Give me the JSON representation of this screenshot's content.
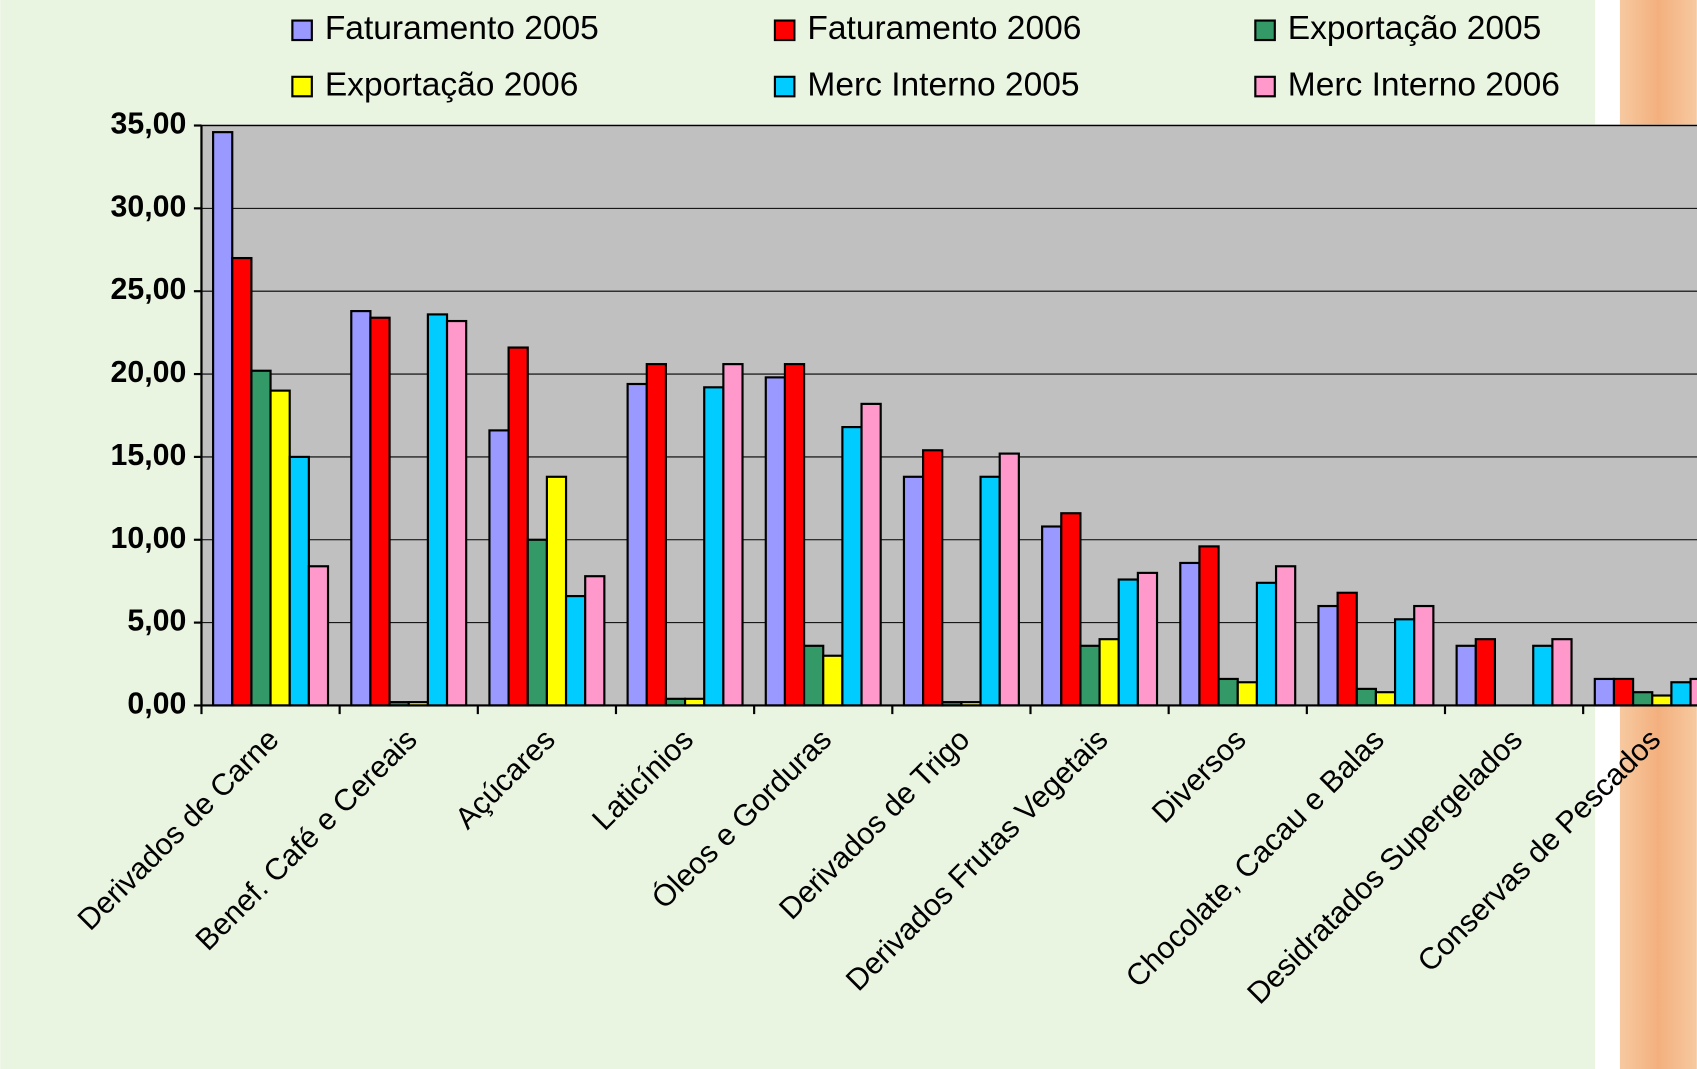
{
  "chart_data": {
    "type": "bar",
    "categories": [
      "Derivados de Carne",
      "Benef. Café e Cereais",
      "Açúcares",
      "Laticínios",
      "Óleos e Gorduras",
      "Derivados de Trigo",
      "Derivados Frutas Vegetais",
      "Diversos",
      "Chocolate, Cacau e Balas",
      "Desidratados Supergelados",
      "Conservas de Pescados"
    ],
    "series": [
      {
        "name": "Faturamento 2005",
        "color": "#9999ff",
        "values": [
          34.6,
          23.8,
          16.6,
          19.4,
          19.8,
          13.8,
          10.8,
          8.6,
          6.0,
          3.6,
          1.6
        ]
      },
      {
        "name": "Faturamento 2006",
        "color": "#ff0000",
        "values": [
          27.0,
          23.4,
          21.6,
          20.6,
          20.6,
          15.4,
          11.6,
          9.6,
          6.8,
          4.0,
          1.6
        ]
      },
      {
        "name": "Exportação 2005",
        "color": "#339966",
        "values": [
          20.2,
          0.2,
          10.0,
          0.4,
          3.6,
          0.2,
          3.6,
          1.6,
          1.0,
          0,
          0.8
        ]
      },
      {
        "name": "Exportação 2006",
        "color": "#ffff00",
        "values": [
          19.0,
          0.2,
          13.8,
          0.4,
          3.0,
          0.2,
          4.0,
          1.4,
          0.8,
          0,
          0.6
        ]
      },
      {
        "name": "Merc Interno 2005",
        "color": "#00ccff",
        "values": [
          15.0,
          23.6,
          6.6,
          19.2,
          16.8,
          13.8,
          7.6,
          7.4,
          5.2,
          3.6,
          1.4
        ]
      },
      {
        "name": "Merc Interno 2006",
        "color": "#ff99cc",
        "values": [
          8.4,
          23.2,
          7.8,
          20.6,
          18.2,
          15.2,
          8.0,
          8.4,
          6.0,
          4.0,
          1.6
        ]
      }
    ],
    "ylim": [
      0,
      35
    ],
    "yticks": [
      {
        "value": 0,
        "label": "0,00"
      },
      {
        "value": 5,
        "label": "5,00"
      },
      {
        "value": 10,
        "label": "10,00"
      },
      {
        "value": 15,
        "label": "15,00"
      },
      {
        "value": 20,
        "label": "20,00"
      },
      {
        "value": 25,
        "label": "25,00"
      },
      {
        "value": 30,
        "label": "30,00"
      },
      {
        "value": 35,
        "label": "35,00"
      }
    ],
    "grid": true,
    "legend": "top",
    "plot_background": "#c0c0c0"
  }
}
